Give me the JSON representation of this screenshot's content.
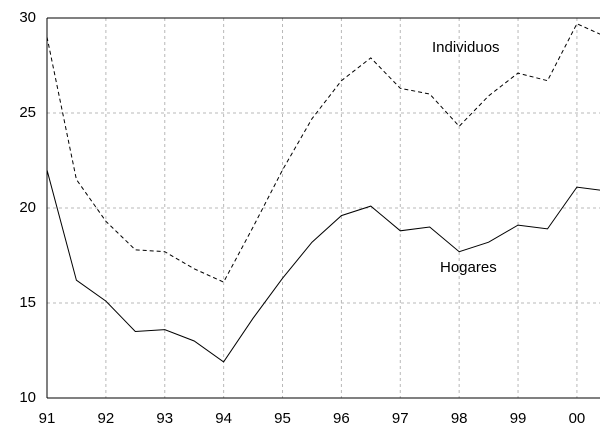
{
  "chart_data": {
    "type": "line",
    "categories": [
      "91",
      null,
      "92",
      null,
      "93",
      null,
      "94",
      null,
      "95",
      null,
      "96",
      null,
      "97",
      null,
      "98",
      null,
      "99",
      null,
      {
        "value": 0,
        "label": "00"
      },
      null
    ],
    "series": [
      {
        "name": "Individuos",
        "color": "#000000",
        "style": "dashed",
        "values": [
          29.0,
          21.5,
          19.3,
          17.8,
          17.7,
          16.8,
          16.1,
          19.0,
          22.0,
          24.7,
          26.7,
          27.9,
          26.3,
          26.0,
          24.3,
          25.9,
          27.1,
          26.7,
          29.7,
          29.0
        ]
      },
      {
        "name": "Hogares",
        "color": "#000000",
        "style": "solid",
        "values": [
          22.0,
          16.2,
          15.1,
          13.5,
          13.6,
          13.0,
          11.9,
          14.2,
          16.3,
          18.2,
          19.6,
          20.1,
          18.8,
          19.0,
          17.7,
          18.2,
          19.1,
          18.9,
          21.1,
          20.9
        ]
      }
    ],
    "ylim": [
      10,
      30
    ],
    "yticks": [
      10,
      15,
      20,
      25,
      30
    ],
    "grid": true
  }
}
